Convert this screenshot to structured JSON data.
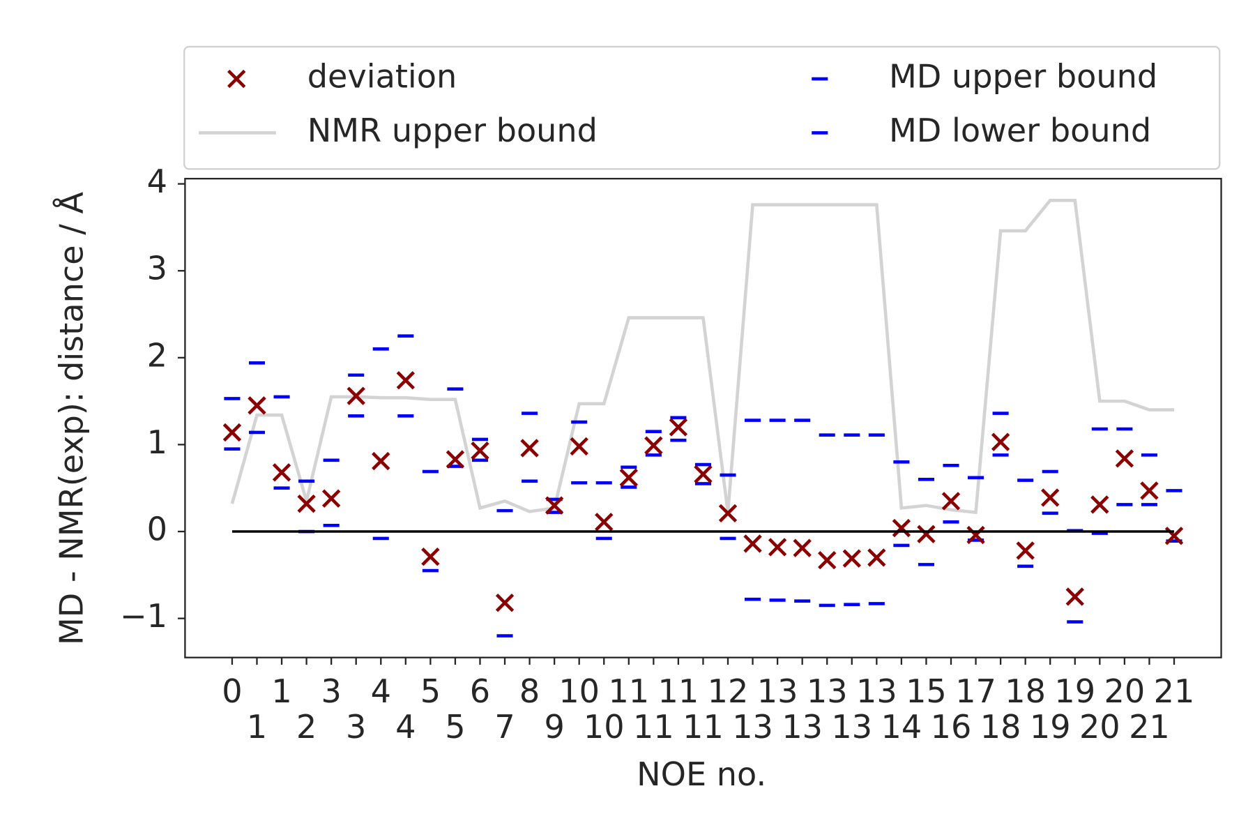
{
  "chart_data": {
    "type": "scatter",
    "xlabel": "NOE no.",
    "ylabel": "MD - NMR(exp): distance / Å",
    "categories": [
      "0",
      "1",
      "1",
      "2",
      "3",
      "3",
      "4",
      "4",
      "5",
      "5",
      "6",
      "7",
      "8",
      "9",
      "10",
      "10",
      "11",
      "11",
      "11",
      "11",
      "12",
      "13",
      "13",
      "13",
      "13",
      "13",
      "13",
      "14",
      "15",
      "16",
      "17",
      "18",
      "18",
      "19",
      "19",
      "20",
      "20",
      "21",
      "21"
    ],
    "xlim": [
      -1.9,
      39.9
    ],
    "ylim": [
      -1.45,
      4.06
    ],
    "yticks": [
      {
        "value": -1,
        "label": "−1"
      },
      0,
      1,
      2,
      3,
      4
    ],
    "reference_line": 0,
    "series": [
      {
        "name": "deviation",
        "marker": "x",
        "color": "#8b0000",
        "values": [
          1.14,
          1.45,
          0.68,
          0.32,
          0.38,
          1.56,
          0.81,
          1.74,
          -0.29,
          0.83,
          0.93,
          -0.82,
          0.96,
          0.3,
          0.98,
          0.11,
          0.62,
          0.99,
          1.2,
          0.66,
          0.21,
          -0.14,
          -0.18,
          -0.19,
          -0.33,
          -0.31,
          -0.3,
          0.04,
          -0.03,
          0.35,
          -0.04,
          1.03,
          -0.22,
          0.39,
          -0.75,
          0.31,
          0.84,
          0.47,
          -0.05
        ]
      },
      {
        "name": "NMR upper bound",
        "marker": "line",
        "color": "#d3d3d3",
        "values": [
          0.32,
          1.34,
          1.34,
          0.35,
          1.55,
          1.55,
          1.54,
          1.54,
          1.52,
          1.52,
          0.27,
          0.35,
          0.23,
          0.27,
          1.47,
          1.47,
          2.46,
          2.46,
          2.46,
          2.46,
          0.22,
          3.76,
          3.76,
          3.76,
          3.76,
          3.76,
          3.76,
          0.27,
          0.3,
          0.25,
          0.22,
          3.46,
          3.46,
          3.81,
          3.81,
          1.5,
          1.5,
          1.4,
          1.4
        ]
      },
      {
        "name": "MD upper bound",
        "marker": "_",
        "color": "#0000ff",
        "values": [
          1.53,
          1.94,
          1.55,
          0.58,
          0.82,
          1.8,
          2.1,
          2.25,
          0.69,
          1.64,
          1.06,
          0.24,
          1.36,
          0.37,
          1.26,
          0.56,
          0.74,
          1.15,
          1.31,
          0.77,
          0.65,
          1.28,
          1.28,
          1.28,
          1.11,
          1.11,
          1.11,
          0.8,
          0.6,
          0.76,
          0.62,
          1.36,
          0.59,
          0.69,
          0.01,
          1.18,
          1.18,
          0.88,
          0.47
        ]
      },
      {
        "name": "MD lower bound",
        "marker": "_",
        "color": "#0000ff",
        "values": [
          0.95,
          1.14,
          0.5,
          0.0,
          0.07,
          1.33,
          -0.08,
          1.33,
          -0.45,
          0.75,
          0.82,
          -1.2,
          0.58,
          0.22,
          0.56,
          -0.08,
          0.51,
          0.88,
          1.05,
          0.55,
          -0.08,
          -0.78,
          -0.79,
          -0.8,
          -0.85,
          -0.84,
          -0.83,
          -0.16,
          -0.38,
          0.11,
          -0.1,
          0.88,
          -0.4,
          0.21,
          -1.04,
          -0.02,
          0.31,
          0.31,
          -0.11
        ]
      }
    ]
  }
}
